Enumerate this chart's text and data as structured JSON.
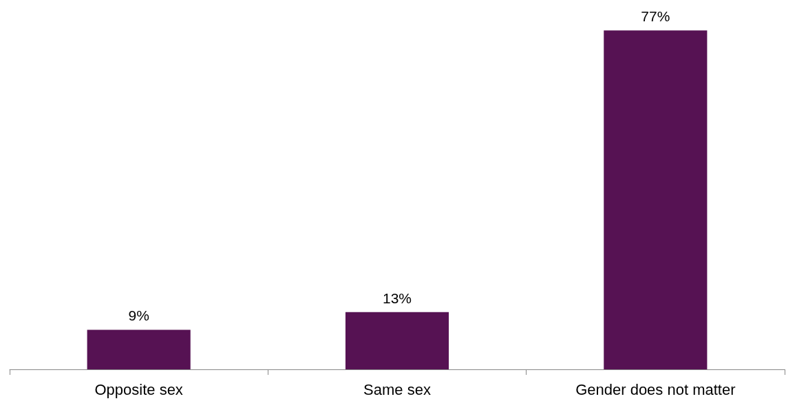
{
  "chart_data": {
    "type": "bar",
    "categories": [
      "Opposite sex",
      "Same sex",
      "Gender does not matter"
    ],
    "values": [
      9,
      13,
      77
    ],
    "value_labels": [
      "9%",
      "13%",
      "77%"
    ],
    "color": "#561253"
  }
}
